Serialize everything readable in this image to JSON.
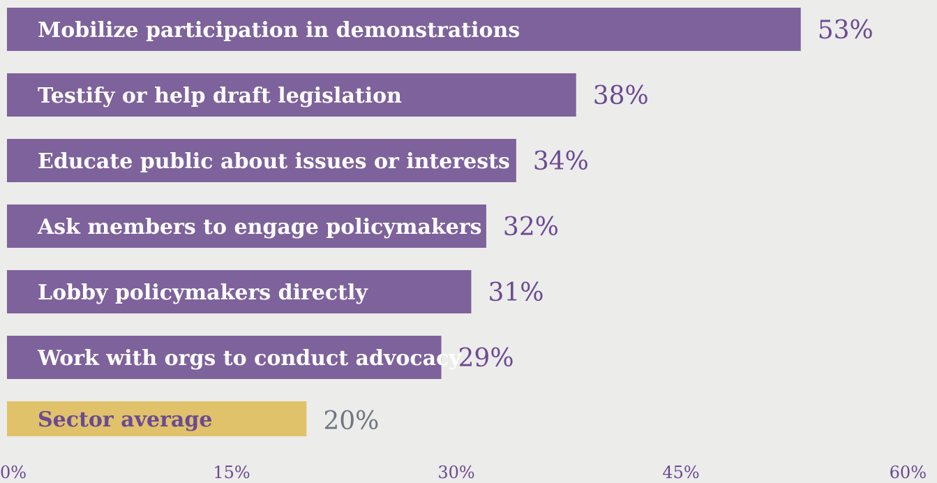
{
  "chart_data": {
    "type": "bar",
    "orientation": "horizontal",
    "categories": [
      "Mobilize participation in demonstrations",
      "Testify or help draft legislation",
      "Educate public about issues or interests",
      "Ask members to engage policymakers",
      "Lobby policymakers directly",
      "Work with orgs to conduct advocacy",
      "Sector average"
    ],
    "values": [
      53,
      38,
      34,
      32,
      31,
      29,
      20
    ],
    "value_labels": [
      "53%",
      "38%",
      "34%",
      "32%",
      "31%",
      "29%",
      "20%"
    ],
    "xlim": [
      0,
      60
    ],
    "x_ticks": [
      0,
      15,
      30,
      45,
      60
    ],
    "x_tick_labels": [
      "0%",
      "15%",
      "30%",
      "45%",
      "60%"
    ],
    "grid": false,
    "legend": "none",
    "colors": {
      "background": "#ececea",
      "bar": "#7e629b",
      "bar_text": "#ffffff",
      "value_text": "#6b4a93",
      "highlight_bar": "#e0c26a",
      "highlight_text": "#6b4a93",
      "highlight_value_text": "#6f7680",
      "axis_text": "#6b4a93"
    },
    "highlight_index": 6
  }
}
